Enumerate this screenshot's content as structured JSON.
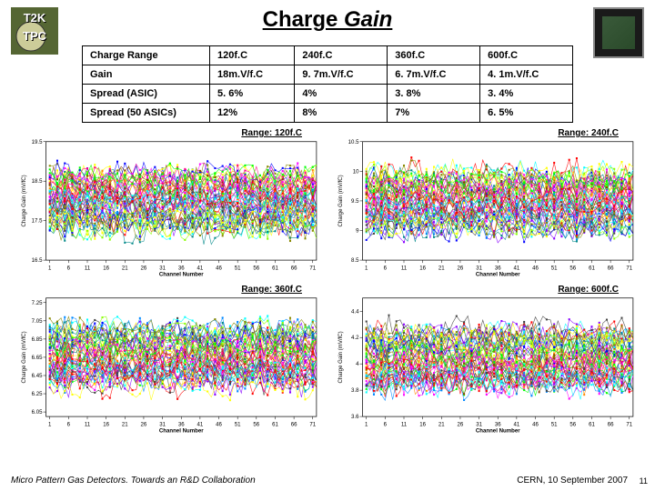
{
  "title_prefix": "Charge ",
  "title_gain": "Gain",
  "table": {
    "rows": [
      [
        "Charge Range",
        "120f.C",
        "240f.C",
        "360f.C",
        "600f.C"
      ],
      [
        "Gain",
        "18m.V/f.C",
        "9. 7m.V/f.C",
        "6. 7m.V/f.C",
        "4. 1m.V/f.C"
      ],
      [
        "Spread (ASIC)",
        "5. 6%",
        "4%",
        "3. 8%",
        "3. 4%"
      ],
      [
        "Spread (50 ASICs)",
        "12%",
        "8%",
        "7%",
        "6. 5%"
      ]
    ]
  },
  "charts": [
    {
      "label": "Range: 120f.C",
      "ylabel": "Charge Gain (mV/fC)",
      "xlabel": "Channel Number",
      "ylim": [
        16.5,
        19.5
      ],
      "yticks": [
        16.5,
        17.5,
        18.5,
        19.5
      ],
      "xlim": [
        0,
        72
      ],
      "xticks": [
        1,
        6,
        11,
        16,
        21,
        26,
        31,
        36,
        41,
        46,
        51,
        56,
        61,
        66,
        71
      ]
    },
    {
      "label": "Range: 240f.C",
      "ylabel": "Charge Gain (mV/fC)",
      "xlabel": "Channel Number",
      "ylim": [
        8.5,
        10.5
      ],
      "yticks": [
        8.5,
        9.0,
        9.5,
        10.0,
        10.5
      ],
      "xlim": [
        0,
        72
      ],
      "xticks": [
        1,
        6,
        11,
        16,
        21,
        26,
        31,
        36,
        41,
        46,
        51,
        56,
        61,
        66,
        71
      ]
    },
    {
      "label": "Range: 360f.C",
      "ylabel": "Charge Gain (mV/fC)",
      "xlabel": "Channel Number",
      "ylim": [
        6.0,
        7.3
      ],
      "yticks": [
        6.05,
        6.25,
        6.45,
        6.65,
        6.85,
        7.05,
        7.25
      ],
      "xlim": [
        0,
        72
      ],
      "xticks": [
        1,
        6,
        11,
        16,
        21,
        26,
        31,
        36,
        41,
        46,
        51,
        56,
        61,
        66,
        71
      ]
    },
    {
      "label": "Range: 600f.C",
      "ylabel": "Charge Gain (mV/fC)",
      "xlabel": "Channel Number",
      "ylim": [
        3.6,
        4.5
      ],
      "yticks": [
        3.6,
        3.8,
        4.0,
        4.2,
        4.4
      ],
      "xlim": [
        0,
        72
      ],
      "xticks": [
        1,
        6,
        11,
        16,
        21,
        26,
        31,
        36,
        41,
        46,
        51,
        56,
        61,
        66,
        71
      ]
    }
  ],
  "chart_style": {
    "background": "#ffffff",
    "axis_color": "#000000",
    "line_colors": [
      "#ff00ff",
      "#00ffff",
      "#ffff00",
      "#00ff00",
      "#ff0000",
      "#0000ff",
      "#ff8800",
      "#8800ff",
      "#008888",
      "#884400",
      "#444444",
      "#88ff00",
      "#ff0088",
      "#0088ff",
      "#888800"
    ],
    "marker_size": 2,
    "line_width": 0.6,
    "n_series": 50,
    "n_points": 72
  },
  "footer": {
    "left": "Micro Pattern Gas Detectors. Towards an R&D Collaboration",
    "right": "CERN, 10 September 2007",
    "page": "11"
  },
  "logo": {
    "bg": "#556633",
    "disc": "#cccc99",
    "text1": "T2K",
    "text2": "TPC"
  }
}
